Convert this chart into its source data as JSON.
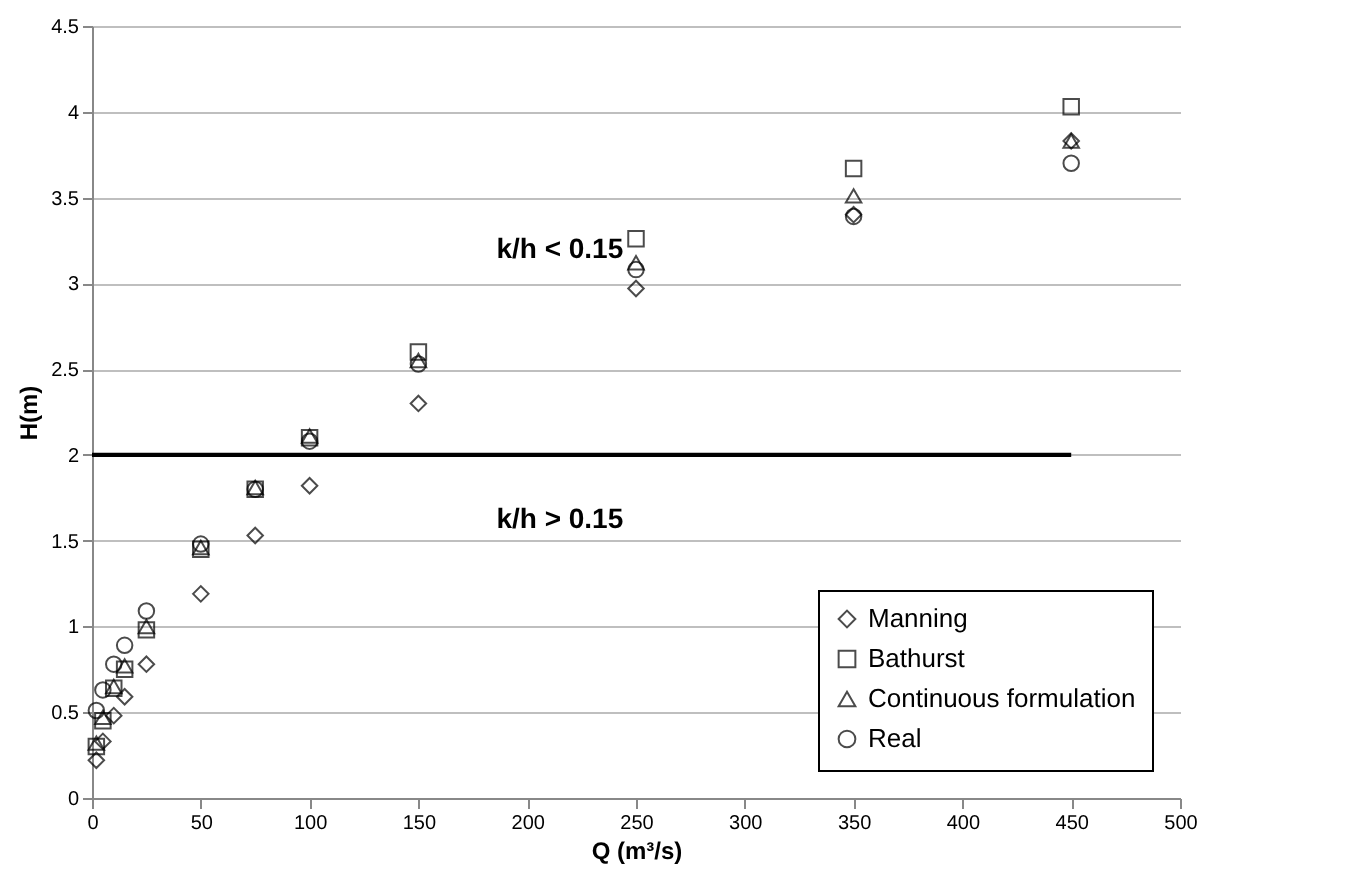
{
  "chart_data": {
    "type": "scatter",
    "xlabel": "Q (m³/s)",
    "ylabel": "H(m)",
    "xlim": [
      0,
      500
    ],
    "xticks": [
      0,
      50,
      100,
      150,
      200,
      250,
      300,
      350,
      400,
      450,
      500
    ],
    "ylim": [
      0,
      4.5
    ],
    "yticks": [
      0,
      0.5,
      1,
      1.5,
      2,
      2.5,
      3,
      3.5,
      4,
      4.5
    ],
    "grid": "y",
    "legend": "bottom right",
    "x": [
      2,
      5,
      10,
      15,
      25,
      50,
      75,
      100,
      150,
      250,
      350,
      450
    ],
    "series": [
      {
        "name": "Manning",
        "color": "#000000",
        "marker": "diamond",
        "values": [
          0.22,
          0.33,
          0.48,
          0.59,
          0.78,
          1.19,
          1.53,
          1.82,
          2.3,
          2.97,
          3.4,
          3.83
        ]
      },
      {
        "name": "Bathurst",
        "color": "#000000",
        "marker": "square",
        "values": [
          0.3,
          0.45,
          0.64,
          0.75,
          0.98,
          1.45,
          1.8,
          2.1,
          2.6,
          3.26,
          3.67,
          4.03
        ]
      },
      {
        "name": "Continuous formulation",
        "color": "#000000",
        "marker": "triangle",
        "values": [
          0.32,
          0.47,
          0.65,
          0.77,
          1.0,
          1.46,
          1.81,
          2.11,
          2.55,
          3.12,
          3.51,
          3.83
        ]
      },
      {
        "name": "Real",
        "color": "#000000",
        "marker": "circle",
        "values": [
          0.51,
          0.63,
          0.78,
          0.89,
          1.09,
          1.48,
          1.8,
          2.08,
          2.53,
          3.08,
          3.39,
          3.7
        ]
      },
      {
        "type": "line",
        "color": "#000000",
        "marker": "none",
        "line_style": "solid",
        "x": [
          0,
          450
        ],
        "values": [
          2,
          2
        ]
      }
    ],
    "annotations": [
      "k/h < 0.15",
      "k/h > 0.15"
    ]
  }
}
